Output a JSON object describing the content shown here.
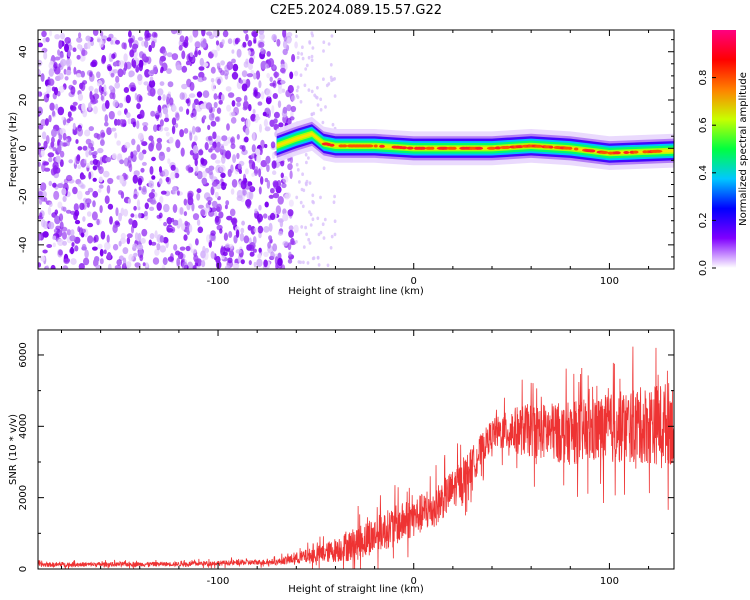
{
  "title": "C2E5.2024.089.15.57.G22",
  "chart_data": [
    {
      "type": "heatmap",
      "xlabel": "Height of straight line (km)",
      "ylabel": "Frequency (Hz)",
      "xlim": [
        -192,
        133
      ],
      "ylim": [
        -50,
        49
      ],
      "xticks": [
        -100,
        0,
        100
      ],
      "yticks": [
        -40,
        -20,
        0,
        20,
        40
      ],
      "noise_region_x": [
        -192,
        -60
      ],
      "sparse_region_x": [
        -60,
        -40
      ],
      "signal_band": [
        {
          "x": -70,
          "f": 1
        },
        {
          "x": -60,
          "f": 4
        },
        {
          "x": -52,
          "f": 6
        },
        {
          "x": -46,
          "f": 2
        },
        {
          "x": -40,
          "f": 1
        },
        {
          "x": -20,
          "f": 1
        },
        {
          "x": 0,
          "f": 0
        },
        {
          "x": 40,
          "f": 0
        },
        {
          "x": 60,
          "f": 1
        },
        {
          "x": 80,
          "f": 0
        },
        {
          "x": 100,
          "f": -2
        },
        {
          "x": 133,
          "f": -1
        }
      ],
      "colorbar": {
        "label": "Normalized spectral amplitude",
        "ticks": [
          0.0,
          0.2,
          0.4,
          0.6,
          0.8
        ],
        "colors": [
          "#ffffff",
          "#8000ff",
          "#0000ff",
          "#00c8ff",
          "#00ff40",
          "#c8ff00",
          "#ff8000",
          "#ff0000",
          "#ff0080"
        ]
      }
    },
    {
      "type": "line",
      "xlabel": "Height of straight line (km)",
      "ylabel": "SNR (10 * v/v)",
      "xlim": [
        -192,
        133
      ],
      "ylim": [
        0,
        6700
      ],
      "xticks": [
        -100,
        0,
        100
      ],
      "yticks": [
        0,
        2000,
        4000,
        6000
      ],
      "color": "#ee3333",
      "envelope": [
        {
          "x": -192,
          "mean": 120,
          "spread": 80
        },
        {
          "x": -120,
          "mean": 140,
          "spread": 80
        },
        {
          "x": -70,
          "mean": 200,
          "spread": 100
        },
        {
          "x": -45,
          "mean": 450,
          "spread": 350
        },
        {
          "x": -30,
          "mean": 700,
          "spread": 600
        },
        {
          "x": -10,
          "mean": 1200,
          "spread": 700
        },
        {
          "x": 10,
          "mean": 1700,
          "spread": 700
        },
        {
          "x": 25,
          "mean": 2500,
          "spread": 700
        },
        {
          "x": 40,
          "mean": 3800,
          "spread": 500
        },
        {
          "x": 55,
          "mean": 3900,
          "spread": 900
        },
        {
          "x": 80,
          "mean": 3800,
          "spread": 1100
        },
        {
          "x": 110,
          "mean": 4000,
          "spread": 1300
        },
        {
          "x": 133,
          "mean": 4100,
          "spread": 1500
        }
      ]
    }
  ]
}
